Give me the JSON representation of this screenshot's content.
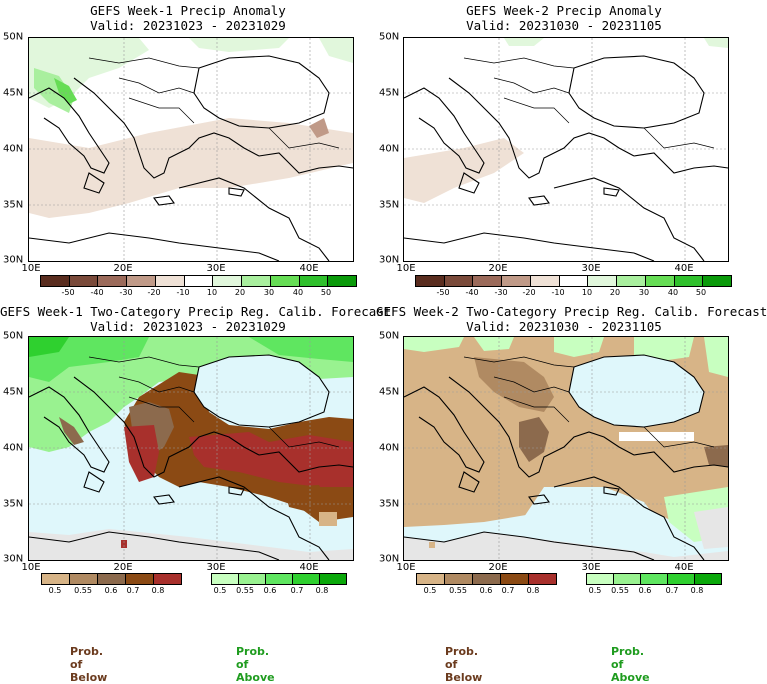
{
  "panels": [
    {
      "id": "week1-anomaly",
      "title": "GEFS Week-1 Precip Anomaly",
      "valid": "Valid: 20231023 - 20231029",
      "lat_labels": [
        "50N",
        "45N",
        "40N",
        "35N",
        "30N"
      ],
      "lon_labels": [
        "10E",
        "20E",
        "30E",
        "40E"
      ],
      "colorbar_labels": [
        "-50",
        "-40",
        "-30",
        "-20",
        "-10",
        "10",
        "20",
        "30",
        "40",
        "50"
      ]
    },
    {
      "id": "week2-anomaly",
      "title": "GEFS Week-2 Precip Anomaly",
      "valid": "Valid: 20231030 - 20231105",
      "lat_labels": [
        "50N",
        "45N",
        "40N",
        "35N",
        "30N"
      ],
      "lon_labels": [
        "10E",
        "20E",
        "30E",
        "40E"
      ],
      "colorbar_labels": [
        "-50",
        "-40",
        "-30",
        "-20",
        "-10",
        "10",
        "20",
        "30",
        "40",
        "50"
      ]
    },
    {
      "id": "week1-twocat",
      "title": "GEFS Week-1 Two-Category Precip Reg. Calib. Forecast",
      "valid": "Valid: 20231023 - 20231029",
      "lat_labels": [
        "50N",
        "45N",
        "40N",
        "35N",
        "30N"
      ],
      "lon_labels": [
        "10E",
        "20E",
        "30E",
        "40E"
      ]
    },
    {
      "id": "week2-twocat",
      "title": "GEFS Week-2 Two-Category Precip Reg. Calib. Forecast",
      "valid": "Valid: 20231030 - 20231105",
      "lat_labels": [
        "50N",
        "45N",
        "40N",
        "35N",
        "30N"
      ],
      "lon_labels": [
        "10E",
        "20E",
        "30E",
        "40E"
      ]
    }
  ],
  "anomaly_colorbar": {
    "colors": [
      "#5a2d1f",
      "#7a4a3a",
      "#9b6a5a",
      "#c09a88",
      "#efe1d6",
      "#ffffff",
      "#e1f7dc",
      "#a9ef9e",
      "#66dd55",
      "#2fc02c",
      "#0a9a0a"
    ]
  },
  "prob_colorbar": {
    "labels": [
      "0.5",
      "0.55",
      "0.6",
      "0.7",
      "0.8"
    ],
    "below_colors": [
      "#d7b487",
      "#b08a62",
      "#8c6a4d",
      "#8b4a14",
      "#a8302c"
    ],
    "above_colors": [
      "#c8ffc0",
      "#99f290",
      "#5fe660",
      "#2fd02f",
      "#0aa80a"
    ],
    "below_title": "Prob. of Below",
    "above_title": "Prob. of Above",
    "below_title_color": "#6b3b1e",
    "above_title_color": "#1f9c1f"
  },
  "colors": {
    "sea_forecast": "#dff7fb",
    "nodata": "#e6e6e6"
  }
}
